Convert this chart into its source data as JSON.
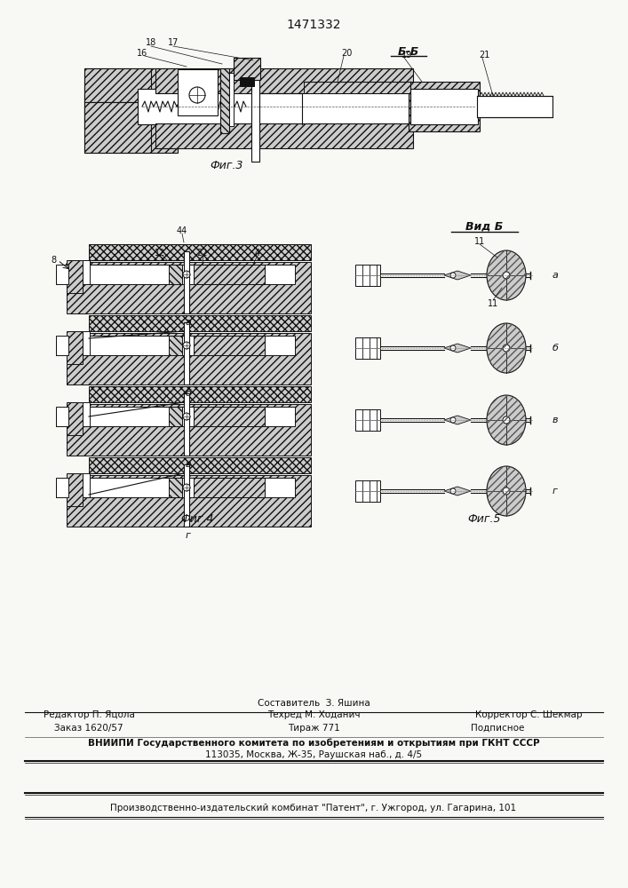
{
  "title": "1471332",
  "bg_color": "#f8f8f5",
  "text_color": "#111111",
  "fig3_label": "Фиг.3",
  "fig4_label": "Фиг.4",
  "fig5_label": "Фиг.5",
  "view_b_label": "Вид Б",
  "section_bb_label": "Б-Б",
  "hatch_fc": "#cccccc",
  "white_fc": "#ffffff",
  "footer_col1": "Редактор П. Яцола",
  "footer_col2_top": "Составитель  З. Яшина",
  "footer_col2_bot": "Техред М. Ходанич",
  "footer_col3": "Корректор С. Шекмар",
  "zakaz": "Заказ 1620/57",
  "tirazh": "Тираж 771",
  "podpisnoe": "Подписное",
  "vnipi_line1": "ВНИИПИ Государственного комитета по изобретениям и открытиям при ГКНТ СССР",
  "vnipi_line2": "113035, Москва, Ж-35, Раушская наб., д. 4/5",
  "publisher": "Производственно-издательский комбинат \"Патент\", г. Ужгород, ул. Гагарина, 101"
}
